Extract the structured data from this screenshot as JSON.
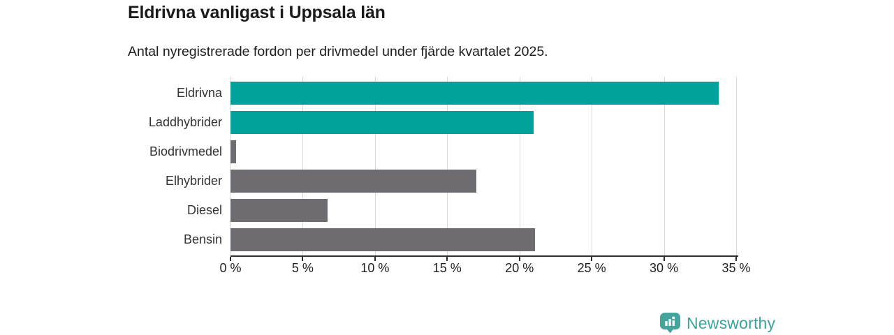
{
  "title": "Eldrivna vanligast i Uppsala län",
  "subtitle": "Antal nyregistrerade fordon per drivmedel under fjärde kvartalet 2025.",
  "footer": {
    "brand": "Newsworthy",
    "logo_icon": "newsworthy-pin-barchart-icon",
    "brand_color": "#3ba39b"
  },
  "colors": {
    "highlight_bar": "#00a29b",
    "default_bar": "#6e6c71",
    "gridline": "#d9d9d9",
    "axis": "#2f2f2f",
    "label_text": "#333333",
    "title_text": "#1b1b1b"
  },
  "chart_data": {
    "type": "bar",
    "orientation": "horizontal",
    "title": "Eldrivna vanligast i Uppsala län",
    "subtitle": "Antal nyregistrerade fordon per drivmedel under fjärde kvartalet 2025.",
    "categories": [
      "Eldrivna",
      "Laddhybrider",
      "Biodrivmedel",
      "Elhybrider",
      "Diesel",
      "Bensin"
    ],
    "values": [
      33.8,
      21.0,
      0.4,
      17.0,
      6.7,
      21.1
    ],
    "unit": "%",
    "bar_colors": [
      "#00a29b",
      "#00a29b",
      "#6e6c71",
      "#6e6c71",
      "#6e6c71",
      "#6e6c71"
    ],
    "xlim": [
      0,
      35
    ],
    "x_ticks": [
      0,
      5,
      10,
      15,
      20,
      25,
      30,
      35
    ],
    "x_tick_labels": [
      "0 %",
      "5 %",
      "10 %",
      "15 %",
      "20 %",
      "25 %",
      "30 %",
      "35 %"
    ],
    "xlabel": "",
    "ylabel": "",
    "grid": "vertical",
    "legend": "none"
  }
}
